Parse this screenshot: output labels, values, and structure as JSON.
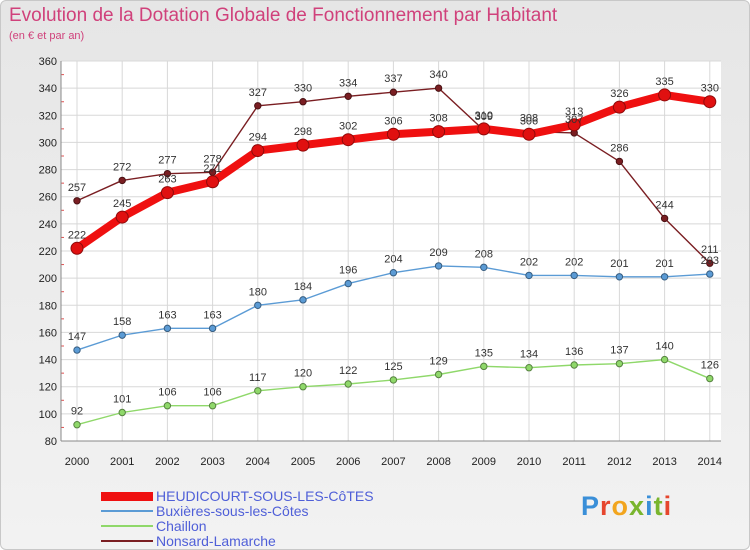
{
  "title": "Evolution de la Dotation Globale de Fonctionnement par Habitant",
  "subtitle": "(en € et par an)",
  "logo": {
    "text": "Proxiti",
    "colors": [
      "#3a8fd8",
      "#e6462e",
      "#f2a51e",
      "#79b52e",
      "#3a8fd8",
      "#79b52e",
      "#e6462e"
    ]
  },
  "chart_data": {
    "type": "line",
    "x": [
      2000,
      2001,
      2002,
      2003,
      2004,
      2005,
      2006,
      2007,
      2008,
      2009,
      2010,
      2011,
      2012,
      2013,
      2014
    ],
    "ylim": [
      80,
      360
    ],
    "yticks": [
      80,
      100,
      120,
      140,
      160,
      180,
      200,
      220,
      240,
      260,
      280,
      300,
      320,
      340,
      360
    ],
    "grid": true,
    "series": [
      {
        "name": "Nonsard-Lamarche",
        "color": "#7a1e22",
        "style": "thin",
        "values": [
          257,
          272,
          277,
          278,
          327,
          330,
          334,
          337,
          340,
          309,
          308,
          307,
          286,
          244,
          211
        ]
      },
      {
        "name": "Chaillon",
        "color": "#8fd86a",
        "style": "thin",
        "values": [
          92,
          101,
          106,
          106,
          117,
          120,
          122,
          125,
          129,
          135,
          134,
          136,
          137,
          140,
          126
        ]
      },
      {
        "name": "Buxières-sous-les-Côtes",
        "color": "#5b9bd5",
        "style": "thin",
        "values": [
          147,
          158,
          163,
          163,
          180,
          184,
          196,
          204,
          209,
          208,
          202,
          202,
          201,
          201,
          203
        ]
      },
      {
        "name": "HEUDICOURT-SOUS-LES-CôTES",
        "color": "#ef1010",
        "style": "thick",
        "values": [
          222,
          245,
          263,
          271,
          294,
          298,
          302,
          306,
          308,
          310,
          306,
          313,
          326,
          335,
          330
        ]
      }
    ],
    "legend_order": [
      3,
      2,
      1,
      0
    ]
  }
}
